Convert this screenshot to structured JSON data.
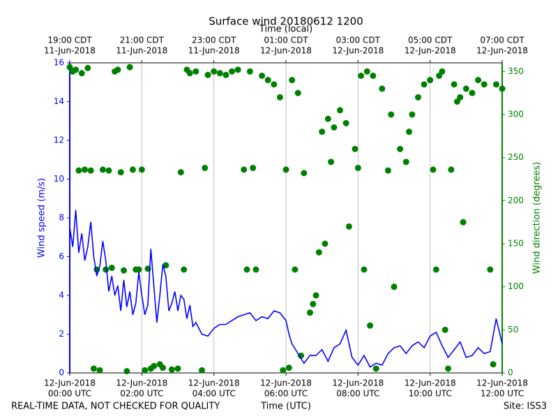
{
  "chart_data": {
    "type": "line",
    "title": "Surface wind 20180612 1200",
    "x_label": "Time (UTC)",
    "x2_label": "Time (local)",
    "y_label": "Wind speed (m/s)",
    "y2_label": "Wind direction (degrees)",
    "footer_left": "REAL-TIME DATA, NOT CHECKED FOR QUALITY",
    "footer_right": "Site: ISS3",
    "xlim": [
      "00:00",
      "12:00"
    ],
    "xticks": [
      {
        "value": "00:00",
        "label": [
          "12-Jun-2018",
          "00:00 UTC"
        ]
      },
      {
        "value": "02:00",
        "label": [
          "12-Jun-2018",
          "02:00 UTC"
        ]
      },
      {
        "value": "04:00",
        "label": [
          "12-Jun-2018",
          "04:00 UTC"
        ]
      },
      {
        "value": "06:00",
        "label": [
          "12-Jun-2018",
          "06:00 UTC"
        ]
      },
      {
        "value": "08:00",
        "label": [
          "12-Jun-2018",
          "08:00 UTC"
        ]
      },
      {
        "value": "10:00",
        "label": [
          "12-Jun-2018",
          "10:00 UTC"
        ]
      },
      {
        "value": "12:00",
        "label": [
          "12-Jun-2018",
          "12:00 UTC"
        ]
      }
    ],
    "x2ticks": [
      {
        "value": "00:00",
        "label": [
          "19:00 CDT",
          "11-Jun-2018"
        ]
      },
      {
        "value": "02:00",
        "label": [
          "21:00 CDT",
          "11-Jun-2018"
        ]
      },
      {
        "value": "04:00",
        "label": [
          "23:00 CDT",
          "11-Jun-2018"
        ]
      },
      {
        "value": "06:00",
        "label": [
          "01:00 CDT",
          "12-Jun-2018"
        ]
      },
      {
        "value": "08:00",
        "label": [
          "03:00 CDT",
          "12-Jun-2018"
        ]
      },
      {
        "value": "10:00",
        "label": [
          "05:00 CDT",
          "12-Jun-2018"
        ]
      },
      {
        "value": "12:00",
        "label": [
          "07:00 CDT",
          "12-Jun-2018"
        ]
      }
    ],
    "ylim": [
      0,
      16
    ],
    "yticks": [
      0,
      2,
      4,
      6,
      8,
      10,
      12,
      14,
      16
    ],
    "y2lim": [
      0,
      360
    ],
    "y2ticks": [
      0,
      50,
      100,
      150,
      200,
      250,
      300,
      350
    ],
    "grid": true,
    "series": [
      {
        "name": "Wind speed",
        "color": "#0000ff",
        "type": "line",
        "axis": "y",
        "x": [
          "00:00",
          "00:05",
          "00:10",
          "00:15",
          "00:20",
          "00:25",
          "00:30",
          "00:35",
          "00:40",
          "00:45",
          "00:50",
          "00:55",
          "01:00",
          "01:05",
          "01:10",
          "01:15",
          "01:20",
          "01:25",
          "01:30",
          "01:35",
          "01:40",
          "01:45",
          "01:50",
          "01:55",
          "02:00",
          "02:05",
          "02:10",
          "02:15",
          "02:20",
          "02:25",
          "02:30",
          "02:35",
          "02:40",
          "02:45",
          "02:50",
          "02:55",
          "03:00",
          "03:05",
          "03:10",
          "03:15",
          "03:20",
          "03:25",
          "03:30",
          "03:40",
          "03:50",
          "04:00",
          "04:10",
          "04:20",
          "04:30",
          "04:40",
          "04:50",
          "05:00",
          "05:10",
          "05:20",
          "05:30",
          "05:40",
          "05:50",
          "06:00",
          "06:05",
          "06:10",
          "06:20",
          "06:30",
          "06:40",
          "06:50",
          "07:00",
          "07:10",
          "07:20",
          "07:30",
          "07:40",
          "07:50",
          "08:00",
          "08:10",
          "08:20",
          "08:30",
          "08:40",
          "08:50",
          "09:00",
          "09:10",
          "09:20",
          "09:30",
          "09:40",
          "09:50",
          "10:00",
          "10:10",
          "10:20",
          "10:30",
          "10:40",
          "10:50",
          "11:00",
          "11:10",
          "11:20",
          "11:30",
          "11:40",
          "11:50",
          "12:00"
        ],
        "values": [
          7.5,
          6.5,
          8.4,
          6.2,
          7.2,
          5.8,
          6.5,
          7.8,
          6.0,
          5.0,
          5.5,
          6.8,
          5.8,
          4.2,
          5.0,
          4.0,
          4.5,
          3.2,
          4.8,
          3.4,
          4.2,
          3.0,
          3.6,
          5.2,
          4.0,
          3.0,
          3.5,
          6.4,
          4.5,
          2.6,
          4.0,
          5.6,
          5.0,
          3.2,
          3.6,
          4.2,
          3.2,
          4.0,
          3.8,
          2.8,
          3.5,
          2.4,
          2.6,
          2.0,
          1.9,
          2.3,
          2.5,
          2.5,
          2.7,
          2.9,
          3.0,
          3.1,
          2.7,
          2.9,
          2.8,
          3.2,
          3.1,
          2.7,
          2.0,
          1.5,
          1.0,
          0.5,
          0.9,
          0.9,
          1.2,
          0.6,
          1.3,
          1.5,
          2.2,
          0.8,
          0.4,
          0.9,
          0.3,
          0.5,
          0.4,
          1.0,
          1.3,
          1.4,
          1.0,
          1.4,
          1.6,
          1.3,
          1.9,
          2.1,
          1.4,
          0.8,
          1.2,
          1.6,
          0.8,
          0.9,
          1.3,
          1.0,
          1.1,
          2.8,
          1.5
        ]
      },
      {
        "name": "Wind direction",
        "color": "#008000",
        "type": "scatter",
        "axis": "y2",
        "x": [
          "00:00",
          "00:05",
          "00:10",
          "00:15",
          "00:20",
          "00:25",
          "00:30",
          "00:35",
          "00:40",
          "00:45",
          "00:50",
          "00:55",
          "01:00",
          "01:05",
          "01:10",
          "01:15",
          "01:20",
          "01:25",
          "01:30",
          "01:35",
          "01:40",
          "01:45",
          "01:50",
          "01:55",
          "02:00",
          "02:05",
          "02:10",
          "02:15",
          "02:20",
          "02:30",
          "02:35",
          "02:40",
          "02:50",
          "03:00",
          "03:05",
          "03:10",
          "03:15",
          "03:20",
          "03:30",
          "03:40",
          "03:45",
          "03:50",
          "04:00",
          "04:10",
          "04:20",
          "04:30",
          "04:40",
          "04:50",
          "04:55",
          "05:00",
          "05:05",
          "05:10",
          "05:20",
          "05:30",
          "05:40",
          "05:50",
          "05:55",
          "06:00",
          "06:05",
          "06:10",
          "06:15",
          "06:20",
          "06:25",
          "06:30",
          "06:40",
          "06:45",
          "06:50",
          "06:55",
          "07:00",
          "07:05",
          "07:10",
          "07:15",
          "07:20",
          "07:30",
          "07:40",
          "07:45",
          "07:55",
          "08:00",
          "08:05",
          "08:10",
          "08:15",
          "08:20",
          "08:25",
          "08:30",
          "08:40",
          "08:50",
          "08:55",
          "09:00",
          "09:10",
          "09:20",
          "09:25",
          "09:30",
          "09:40",
          "09:50",
          "10:00",
          "10:05",
          "10:10",
          "10:15",
          "10:20",
          "10:25",
          "10:30",
          "10:35",
          "10:40",
          "10:45",
          "10:50",
          "10:55",
          "11:00",
          "11:10",
          "11:20",
          "11:30",
          "11:40",
          "11:45",
          "11:50",
          "12:00"
        ],
        "values": [
          355,
          350,
          352,
          235,
          348,
          236,
          354,
          235,
          5,
          120,
          3,
          236,
          120,
          235,
          122,
          350,
          352,
          233,
          119,
          2,
          355,
          236,
          120,
          120,
          236,
          3,
          121,
          5,
          8,
          10,
          6,
          125,
          4,
          5,
          233,
          120,
          352,
          348,
          350,
          3,
          238,
          346,
          350,
          348,
          346,
          350,
          352,
          236,
          120,
          350,
          238,
          120,
          345,
          340,
          335,
          320,
          3,
          236,
          6,
          340,
          120,
          325,
          20,
          232,
          70,
          80,
          90,
          140,
          280,
          150,
          295,
          245,
          285,
          305,
          290,
          170,
          260,
          238,
          345,
          120,
          350,
          55,
          345,
          5,
          330,
          235,
          300,
          100,
          260,
          245,
          280,
          300,
          320,
          335,
          340,
          236,
          120,
          345,
          350,
          50,
          5,
          236,
          335,
          315,
          320,
          175,
          330,
          325,
          340,
          335,
          120,
          10,
          335,
          330
        ]
      }
    ]
  }
}
